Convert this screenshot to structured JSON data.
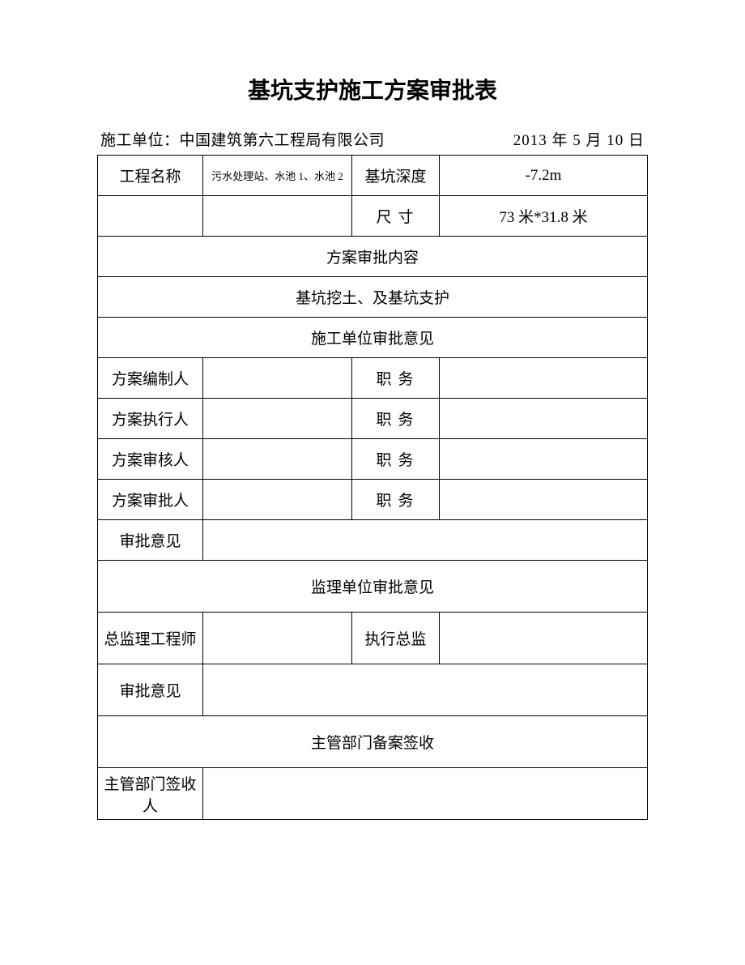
{
  "title": "基坑支护施工方案审批表",
  "header": {
    "unit_label": "施工单位：",
    "unit_value": "中国建筑第六工程局有限公司",
    "date": "2013 年 5 月 10 日"
  },
  "rows": {
    "project_name_label": "工程名称",
    "project_name_value": "污水处理站、水池 1、水池 2",
    "depth_label": "基坑深度",
    "depth_value": "-7.2m",
    "size_label": "尺寸",
    "size_value": "73 米*31.8 米",
    "approval_content_header": "方案审批内容",
    "approval_content_value": "基坑挖土、及基坑支护",
    "construction_unit_header": "施工单位审批意见",
    "plan_compiler_label": "方案编制人",
    "plan_executor_label": "方案执行人",
    "plan_reviewer_label": "方案审核人",
    "plan_approver_label": "方案审批人",
    "position_label": "职务",
    "approval_opinion_label": "审批意见",
    "supervision_unit_header": "监理单位审批意见",
    "chief_supervisor_label": "总监理工程师",
    "exec_director_label": "执行总监",
    "dept_filing_header": "主管部门备案签收",
    "dept_signatory_label": "主管部门签收人"
  }
}
